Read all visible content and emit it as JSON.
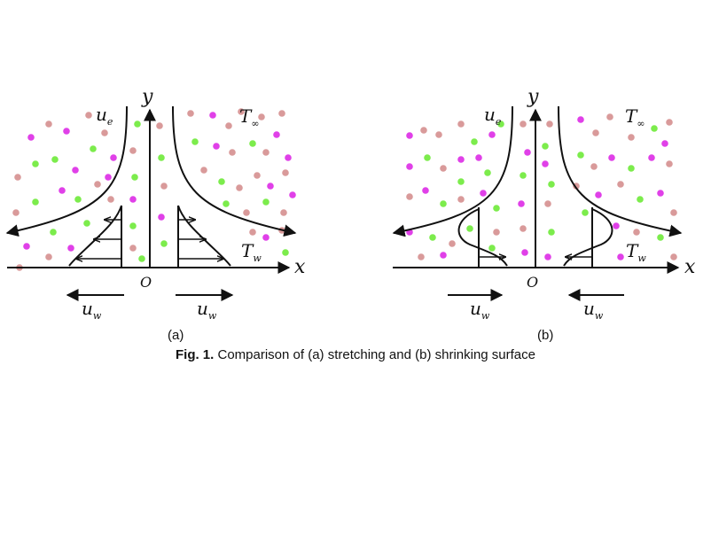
{
  "panel_a": {
    "label": "(a)",
    "y_axis": "y",
    "origin": "O",
    "free_stream_velocity": {
      "base": "u",
      "sub": "e"
    },
    "ambient_temp": {
      "base": "T",
      "sub": "∞"
    },
    "wall_temp": {
      "base": "T",
      "sub": "w"
    },
    "wall_velocity_left": {
      "base": "u",
      "sub": "w"
    },
    "wall_velocity_right": {
      "base": "u",
      "sub": "w"
    }
  },
  "panel_b": {
    "label": "(b)",
    "y_axis": "y",
    "x_axis": "x",
    "origin": "O",
    "free_stream_velocity": {
      "base": "u",
      "sub": "e"
    },
    "ambient_temp": {
      "base": "T",
      "sub": "∞"
    },
    "wall_temp": {
      "base": "T",
      "sub": "w"
    },
    "wall_velocity_left": {
      "base": "u",
      "sub": "w"
    },
    "wall_velocity_right": {
      "base": "u",
      "sub": "w"
    }
  },
  "panel_a_x_axis": "x",
  "caption": {
    "prefix": "Fig. 1.",
    "text": " Comparison of (a) stretching and (b) shrinking surface"
  },
  "colors": {
    "magenta": "#e040e8",
    "green": "#7cec4c",
    "pink": "#d99a9a",
    "line": "#111111"
  }
}
